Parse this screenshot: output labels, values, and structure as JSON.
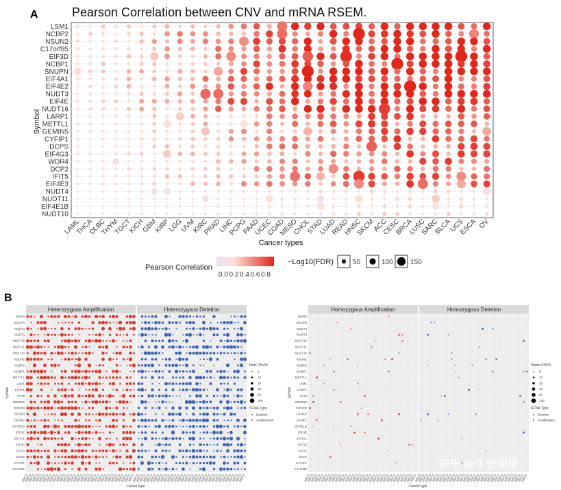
{
  "chart_data": [
    {
      "panel": "A",
      "type": "scatter",
      "title": "Pearson Correlation between CNV and mRNA RSEM.",
      "xlabel": "Cancer types",
      "ylabel": "Symbol",
      "x_categories": [
        "LAML",
        "THCA",
        "DLBC",
        "THYM",
        "TGCT",
        "KICH",
        "GBM",
        "KIRP",
        "LGG",
        "UVM",
        "KIRC",
        "PRAD",
        "LIHC",
        "PCPG",
        "PAAD",
        "UCEC",
        "COAD",
        "MESO",
        "CHOL",
        "STAD",
        "LUAD",
        "READ",
        "HNSC",
        "SKCM",
        "ACC",
        "CESC",
        "BRCA",
        "LUSC",
        "SARC",
        "BLCA",
        "UCS",
        "ESCA",
        "OV"
      ],
      "y_categories": [
        "LSM1",
        "NCBP2",
        "NSUN2",
        "C17orf85",
        "EIF3D",
        "NCBP1",
        "SNUPN",
        "EIF4A1",
        "EIF4E2",
        "NUDT3",
        "EIF4E",
        "NUDT16",
        "LARP1",
        "METTL1",
        "GEMIN5",
        "CYFIP1",
        "DCPS",
        "EIF4G3",
        "WDR4",
        "DCP2",
        "IFIT5",
        "EIF4E3",
        "NUDT4",
        "NUDT11",
        "EIF4E1B",
        "NUDT10"
      ],
      "color_legend": {
        "title": "Pearson Correlation",
        "ticks": [
          "0.0",
          "0.2",
          "0.4",
          "0.6",
          "0.8"
        ],
        "range": [
          0,
          0.8
        ]
      },
      "size_legend": {
        "title": "−Log10(FDR)",
        "ticks": [
          50,
          100,
          150
        ]
      },
      "matrix_note": "dot value = Pearson correlation; dot size = -log10(FDR) (estimated)"
    },
    {
      "panel": "B-left",
      "type": "scatter",
      "facets": [
        "Heterozygous Amplification",
        "Heterozygous Deletion"
      ],
      "xlabel": "Cancer type",
      "ylabel": "Symbol",
      "y_categories": [
        "WDR4",
        "SNUPN",
        "NUDT4",
        "NUDT3",
        "NUDT16",
        "NUDT11",
        "NUDT10",
        "NSUN2",
        "NCBP2",
        "NCBP1",
        "METTL1",
        "LSM1",
        "LARP1",
        "IFIT5",
        "GEMIN5",
        "EIF4G3",
        "EIF4E3",
        "EIF4E2",
        "EIF4E1B",
        "EIF4E",
        "EIF4A1",
        "EIF3D",
        "DCPS",
        "DCP2",
        "CYFIP1",
        "C17orf85"
      ],
      "size_legend": {
        "title": "Hete CNV%",
        "ticks": [
          5,
          10,
          20,
          40,
          60,
          100
        ]
      },
      "type_legend": {
        "title": "SCNA Type",
        "items": [
          "Deletion",
          "Amplification"
        ]
      }
    },
    {
      "panel": "B-right",
      "type": "scatter",
      "facets": [
        "Homozygous Amplification",
        "Homozygous Deletion"
      ],
      "xlabel": "Cancer type",
      "ylabel": "Symbol",
      "y_categories": [
        "WDR4",
        "SNUPN",
        "NUDT4",
        "NUDT3",
        "NUDT16",
        "NUDT11",
        "NUDT10",
        "NSUN2",
        "NCBP2",
        "NCBP1",
        "METTL1",
        "LSM1",
        "LARP1",
        "IFIT5",
        "GEMIN5",
        "EIF4G3",
        "EIF4E3",
        "EIF4E2",
        "EIF4E1B",
        "EIF4E",
        "EIF4A1",
        "EIF3D",
        "DCPS",
        "DCP2",
        "CYFIP1",
        "C17orf85"
      ],
      "size_legend": {
        "title": "Homo CNV%",
        "ticks": [
          5,
          10,
          20,
          40,
          60,
          100
        ]
      },
      "type_legend": {
        "title": "SCNA Type",
        "items": [
          "Deletion",
          "Amplification"
        ]
      }
    }
  ],
  "panel_labels": {
    "a": "A",
    "b": "B"
  },
  "colors": {
    "low": "#e9dff5",
    "mid": "#fbe0d6",
    "high": "#e3261a",
    "amp": "#e0362b",
    "del": "#3a63b8",
    "grid_bg": "#ebebeb",
    "strip": "#d9d9d9"
  },
  "watermark": "知乎 @生信讲堂"
}
